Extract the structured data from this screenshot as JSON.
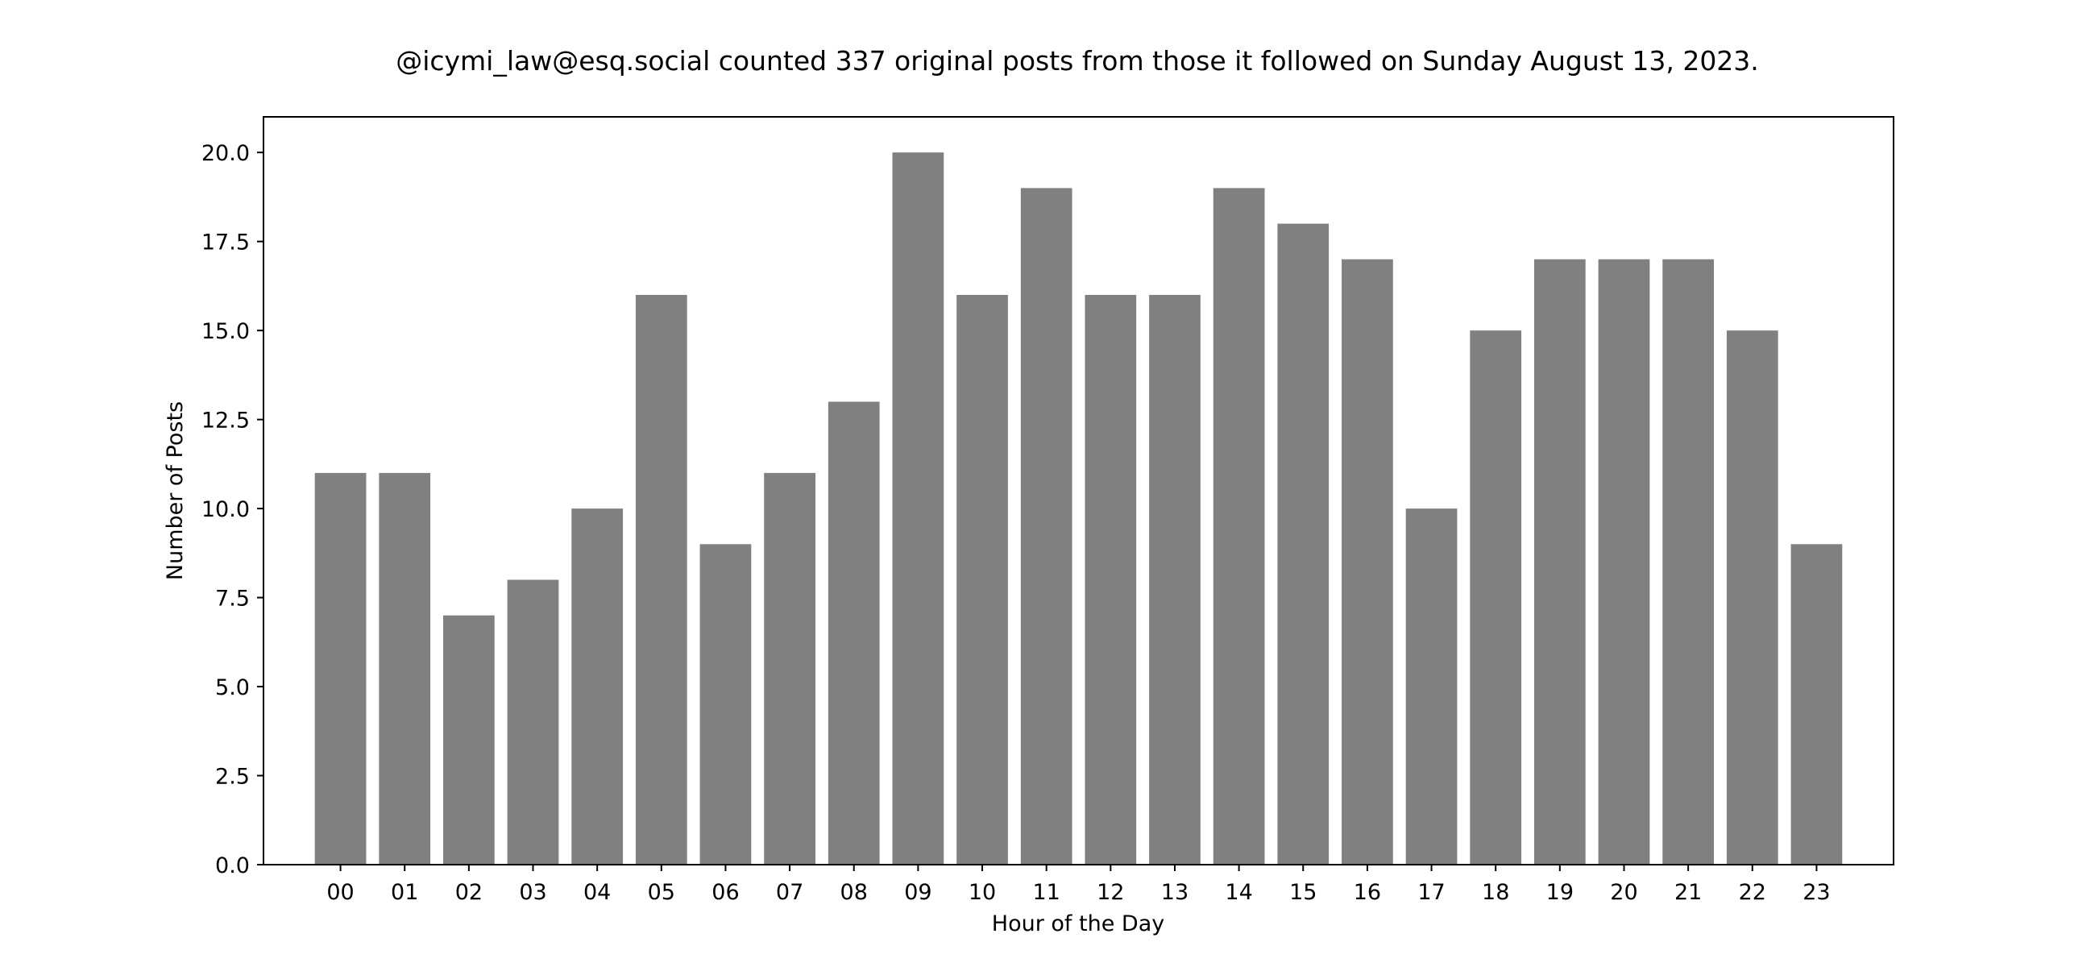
{
  "chart_data": {
    "type": "bar",
    "title": "@icymi_law@esq.social counted 337 original posts from those it followed on Sunday August 13, 2023.",
    "xlabel": "Hour of the Day",
    "ylabel": "Number of Posts",
    "categories": [
      "00",
      "01",
      "02",
      "03",
      "04",
      "05",
      "06",
      "07",
      "08",
      "09",
      "10",
      "11",
      "12",
      "13",
      "14",
      "15",
      "16",
      "17",
      "18",
      "19",
      "20",
      "21",
      "22",
      "23"
    ],
    "values": [
      11,
      11,
      7,
      8,
      10,
      16,
      9,
      11,
      13,
      20,
      16,
      19,
      16,
      16,
      19,
      18,
      17,
      10,
      15,
      17,
      17,
      17,
      15,
      9
    ],
    "ylim": [
      0,
      21
    ],
    "yticks": [
      "0.0",
      "2.5",
      "5.0",
      "7.5",
      "10.0",
      "12.5",
      "15.0",
      "17.5",
      "20.0"
    ],
    "bar_color": "#808080",
    "grid": false,
    "legend": false
  }
}
